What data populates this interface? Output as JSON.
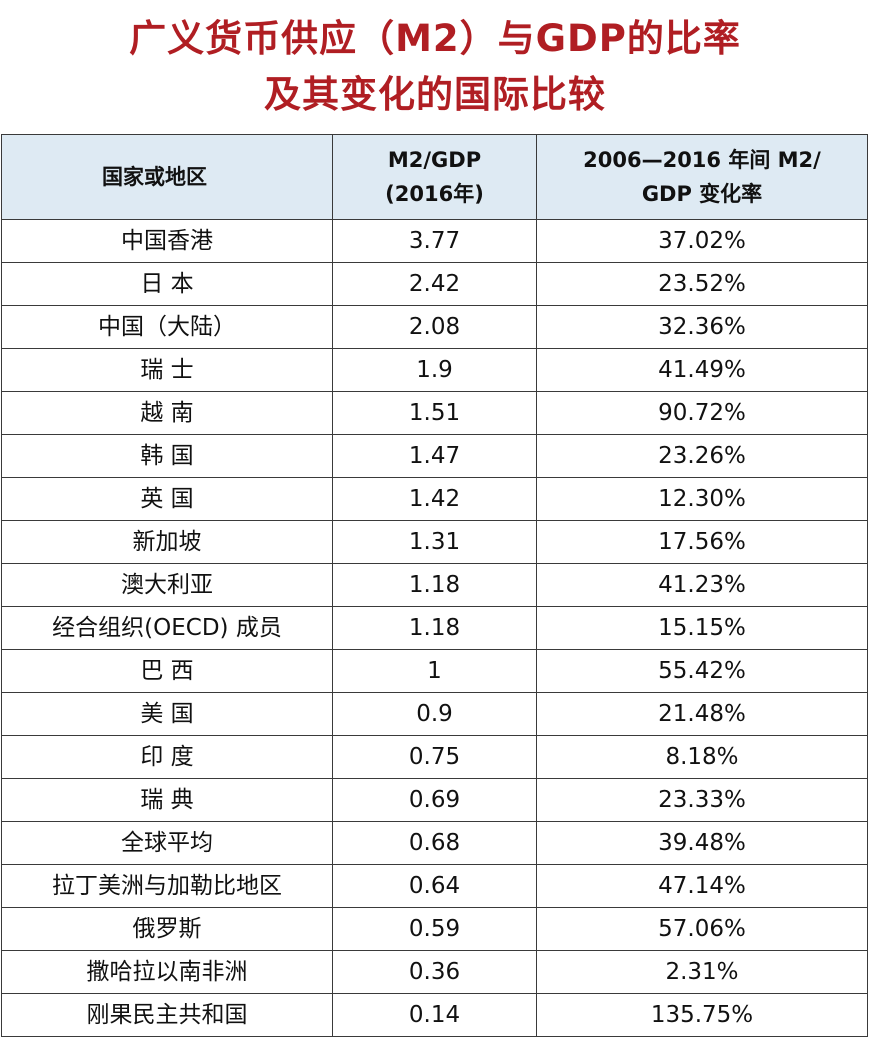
{
  "title": {
    "line1": "广义货币供应（M2）与GDP的比率",
    "line2": "及其变化的国际比较"
  },
  "table": {
    "headers": {
      "region": "国家或地区",
      "m2gdp_line1": "M2/GDP",
      "m2gdp_line2": "(2016年)",
      "change_line1": "2006—2016 年间 M2/",
      "change_line2": "GDP 变化率"
    },
    "rows": [
      {
        "region": "中国香港",
        "m2gdp": "3.77",
        "change": "37.02%"
      },
      {
        "region": "日 本",
        "m2gdp": "2.42",
        "change": "23.52%"
      },
      {
        "region": "中国（大陆）",
        "m2gdp": "2.08",
        "change": "32.36%"
      },
      {
        "region": "瑞 士",
        "m2gdp": "1.9",
        "change": "41.49%"
      },
      {
        "region": "越 南",
        "m2gdp": "1.51",
        "change": "90.72%"
      },
      {
        "region": "韩 国",
        "m2gdp": "1.47",
        "change": "23.26%"
      },
      {
        "region": "英 国",
        "m2gdp": "1.42",
        "change": "12.30%"
      },
      {
        "region": "新加坡",
        "m2gdp": "1.31",
        "change": "17.56%"
      },
      {
        "region": "澳大利亚",
        "m2gdp": "1.18",
        "change": "41.23%"
      },
      {
        "region": "经合组织(OECD) 成员",
        "m2gdp": "1.18",
        "change": "15.15%"
      },
      {
        "region": "巴 西",
        "m2gdp": "1",
        "change": "55.42%"
      },
      {
        "region": "美 国",
        "m2gdp": "0.9",
        "change": "21.48%"
      },
      {
        "region": "印 度",
        "m2gdp": "0.75",
        "change": "8.18%"
      },
      {
        "region": "瑞 典",
        "m2gdp": "0.69",
        "change": "23.33%"
      },
      {
        "region": "全球平均",
        "m2gdp": "0.68",
        "change": "39.48%"
      },
      {
        "region": "拉丁美洲与加勒比地区",
        "m2gdp": "0.64",
        "change": "47.14%"
      },
      {
        "region": "俄罗斯",
        "m2gdp": "0.59",
        "change": "57.06%"
      },
      {
        "region": "撒哈拉以南非洲",
        "m2gdp": "0.36",
        "change": "2.31%"
      },
      {
        "region": "刚果民主共和国",
        "m2gdp": "0.14",
        "change": "135.75%"
      }
    ]
  },
  "colors": {
    "title": "#b01e23",
    "header_bg": "#deeaf3",
    "border": "#3a3a3a"
  }
}
